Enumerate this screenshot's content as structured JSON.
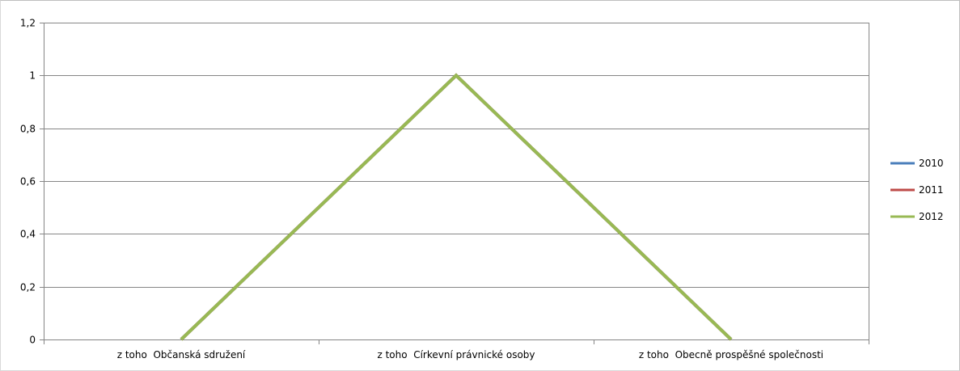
{
  "chart_data": {
    "type": "line",
    "title": "",
    "xlabel": "",
    "ylabel": "",
    "categories": [
      "z toho  Občanská sdružení",
      "z toho  Církevní právnické osoby",
      "z toho  Obecně prospěšné společnosti"
    ],
    "ylim": [
      0,
      1.2
    ],
    "yticks": [
      {
        "value": 0,
        "label": "0"
      },
      {
        "value": 0.2,
        "label": "0,2"
      },
      {
        "value": 0.4,
        "label": "0,4"
      },
      {
        "value": 0.6,
        "label": "0,6"
      },
      {
        "value": 0.8,
        "label": "0,8"
      },
      {
        "value": 1.0,
        "label": "1"
      },
      {
        "value": 1.2,
        "label": "1,2"
      }
    ],
    "grid": true,
    "legend_position": "right",
    "series": [
      {
        "name": "2010",
        "color": "#4a7ebb",
        "values": [
          0,
          1,
          0
        ]
      },
      {
        "name": "2011",
        "color": "#be4b48",
        "values": [
          0,
          1,
          0
        ]
      },
      {
        "name": "2012",
        "color": "#98b954",
        "values": [
          0,
          1,
          0
        ]
      }
    ]
  }
}
